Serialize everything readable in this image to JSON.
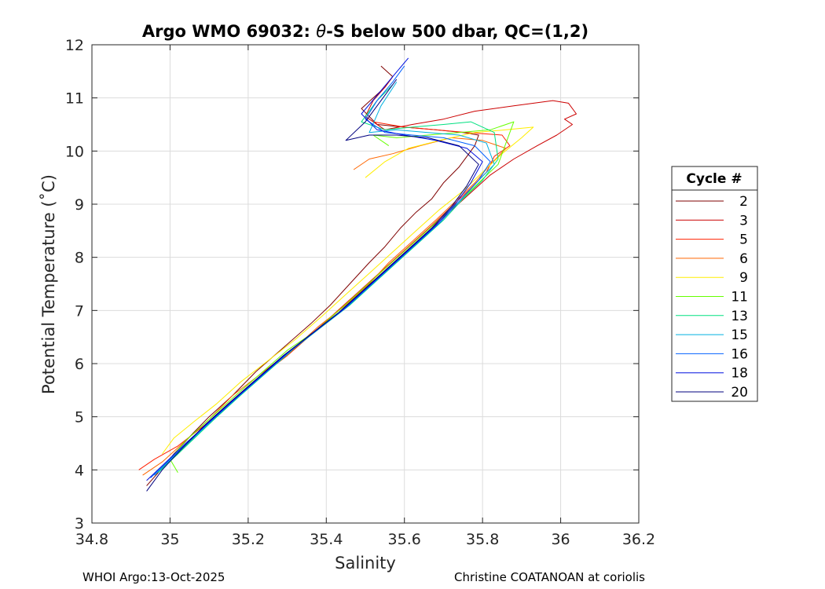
{
  "chart_data": {
    "type": "line",
    "title_prefix": "Argo WMO 69032: ",
    "title_theta": "θ",
    "title_suffix": "-S below 500 dbar,  QC=(1,2)",
    "xlabel": "Salinity",
    "ylabel": "Potential Temperature (˚C)",
    "xlim": [
      34.8,
      36.2
    ],
    "ylim": [
      3,
      12
    ],
    "xticks": [
      "34.8",
      "35",
      "35.2",
      "35.4",
      "35.6",
      "35.8",
      "36",
      "36.2"
    ],
    "yticks": [
      "3",
      "4",
      "5",
      "6",
      "7",
      "8",
      "9",
      "10",
      "11",
      "12"
    ],
    "grid": true,
    "legend_position": "outside-right",
    "legend_title": "Cycle #",
    "series": [
      {
        "name": "2",
        "color": "#7f0000",
        "x": [
          34.94,
          34.97,
          35.01,
          35.06,
          35.1,
          35.16,
          35.22,
          35.29,
          35.36,
          35.41,
          35.46,
          35.51,
          35.55,
          35.59,
          35.63,
          35.67,
          35.7,
          35.74,
          35.76,
          35.78,
          35.79,
          35.75,
          35.68,
          35.6,
          35.53,
          35.49,
          35.52,
          35.55,
          35.57,
          35.54
        ],
        "y": [
          3.7,
          3.95,
          4.3,
          4.7,
          5.0,
          5.4,
          5.85,
          6.3,
          6.75,
          7.1,
          7.5,
          7.9,
          8.2,
          8.55,
          8.85,
          9.1,
          9.4,
          9.7,
          9.9,
          10.1,
          10.3,
          10.35,
          10.4,
          10.45,
          10.5,
          10.8,
          11.0,
          11.2,
          11.4,
          11.6
        ]
      },
      {
        "name": "3",
        "color": "#cc0000",
        "x": [
          34.96,
          35.02,
          35.08,
          35.14,
          35.2,
          35.26,
          35.33,
          35.4,
          35.46,
          35.52,
          35.58,
          35.64,
          35.7,
          35.76,
          35.82,
          35.88,
          35.94,
          35.99,
          36.03,
          36.01,
          36.04,
          36.02,
          35.98,
          35.88,
          35.78,
          35.7,
          35.62,
          35.55,
          35.5,
          35.52,
          35.55,
          35.57
        ],
        "y": [
          3.9,
          4.3,
          4.75,
          5.15,
          5.55,
          5.95,
          6.35,
          6.8,
          7.2,
          7.55,
          7.95,
          8.35,
          8.75,
          9.15,
          9.55,
          9.85,
          10.1,
          10.3,
          10.5,
          10.6,
          10.7,
          10.9,
          10.95,
          10.85,
          10.75,
          10.6,
          10.5,
          10.4,
          10.65,
          10.95,
          11.2,
          11.4
        ]
      },
      {
        "name": "5",
        "color": "#ff2000",
        "x": [
          34.92,
          34.96,
          35.02,
          35.09,
          35.15,
          35.22,
          35.3,
          35.37,
          35.43,
          35.49,
          35.55,
          35.61,
          35.67,
          35.72,
          35.77,
          35.81,
          35.83,
          35.87,
          35.85,
          35.76,
          35.68,
          35.6,
          35.52
        ],
        "y": [
          4.0,
          4.2,
          4.45,
          4.85,
          5.25,
          5.7,
          6.15,
          6.6,
          7.0,
          7.4,
          7.8,
          8.2,
          8.6,
          8.95,
          9.3,
          9.6,
          9.9,
          10.1,
          10.3,
          10.35,
          10.4,
          10.45,
          10.55
        ]
      },
      {
        "name": "6",
        "color": "#ff6600",
        "x": [
          34.93,
          34.98,
          35.04,
          35.1,
          35.16,
          35.24,
          35.32,
          35.38,
          35.45,
          35.51,
          35.56,
          35.62,
          35.68,
          35.73,
          35.78,
          35.82,
          35.86,
          35.8,
          35.72,
          35.64,
          35.57,
          35.51,
          35.47
        ],
        "y": [
          3.9,
          4.15,
          4.55,
          4.95,
          5.4,
          5.85,
          6.3,
          6.7,
          7.1,
          7.5,
          7.9,
          8.3,
          8.7,
          9.05,
          9.4,
          9.75,
          10.05,
          10.2,
          10.25,
          10.1,
          9.95,
          9.85,
          9.65
        ]
      },
      {
        "name": "9",
        "color": "#ffee00",
        "x": [
          34.98,
          35.01,
          35.06,
          35.12,
          35.18,
          35.25,
          35.32,
          35.39,
          35.45,
          35.51,
          35.57,
          35.63,
          35.69,
          35.75,
          35.8,
          35.85,
          35.9,
          35.93,
          35.86,
          35.78,
          35.69,
          35.61,
          35.55,
          35.5
        ],
        "y": [
          4.3,
          4.6,
          4.9,
          5.25,
          5.65,
          6.05,
          6.45,
          6.9,
          7.3,
          7.7,
          8.1,
          8.5,
          8.9,
          9.25,
          9.6,
          9.95,
          10.25,
          10.45,
          10.4,
          10.35,
          10.2,
          10.05,
          9.8,
          9.5
        ]
      },
      {
        "name": "11",
        "color": "#66ff00",
        "x": [
          35.02,
          35.0,
          35.04,
          35.1,
          35.16,
          35.23,
          35.3,
          35.37,
          35.44,
          35.5,
          35.56,
          35.62,
          35.68,
          35.74,
          35.79,
          35.84,
          35.88,
          35.82,
          35.74,
          35.66,
          35.58,
          35.52,
          35.56
        ],
        "y": [
          3.95,
          4.2,
          4.55,
          4.95,
          5.35,
          5.8,
          6.25,
          6.6,
          7.05,
          7.45,
          7.85,
          8.25,
          8.65,
          9.05,
          9.4,
          9.75,
          10.55,
          10.4,
          10.35,
          10.3,
          10.25,
          10.3,
          10.1
        ]
      },
      {
        "name": "13",
        "color": "#00e080",
        "x": [
          34.97,
          35.02,
          35.07,
          35.12,
          35.18,
          35.25,
          35.32,
          35.39,
          35.46,
          35.52,
          35.58,
          35.64,
          35.7,
          35.75,
          35.8,
          35.84,
          35.83,
          35.77,
          35.7,
          35.62,
          35.55,
          35.49,
          35.53,
          35.57
        ],
        "y": [
          3.95,
          4.3,
          4.65,
          5.0,
          5.4,
          5.85,
          6.3,
          6.7,
          7.1,
          7.5,
          7.9,
          8.3,
          8.7,
          9.1,
          9.45,
          9.85,
          10.35,
          10.55,
          10.5,
          10.45,
          10.4,
          10.55,
          10.95,
          11.25
        ]
      },
      {
        "name": "15",
        "color": "#00b0e0",
        "x": [
          34.96,
          35.01,
          35.06,
          35.11,
          35.17,
          35.24,
          35.31,
          35.38,
          35.45,
          35.51,
          35.57,
          35.63,
          35.69,
          35.74,
          35.79,
          35.83,
          35.81,
          35.74,
          35.66,
          35.58,
          35.51,
          35.54,
          35.58
        ],
        "y": [
          3.9,
          4.25,
          4.6,
          4.95,
          5.35,
          5.8,
          6.25,
          6.65,
          7.05,
          7.45,
          7.85,
          8.25,
          8.65,
          9.05,
          9.45,
          9.75,
          10.15,
          10.3,
          10.35,
          10.4,
          10.35,
          10.85,
          11.3
        ]
      },
      {
        "name": "16",
        "color": "#0060ff",
        "x": [
          34.95,
          35.0,
          35.05,
          35.11,
          35.17,
          35.24,
          35.31,
          35.38,
          35.45,
          35.51,
          35.57,
          35.63,
          35.69,
          35.74,
          35.79,
          35.82,
          35.78,
          35.7,
          35.62,
          35.55,
          35.5,
          35.53,
          35.57,
          35.6
        ],
        "y": [
          3.85,
          4.2,
          4.55,
          4.95,
          5.35,
          5.8,
          6.25,
          6.65,
          7.05,
          7.45,
          7.85,
          8.25,
          8.65,
          9.05,
          9.45,
          9.8,
          10.1,
          10.25,
          10.3,
          10.35,
          10.6,
          10.95,
          11.3,
          11.6
        ]
      },
      {
        "name": "18",
        "color": "#0010e0",
        "x": [
          34.94,
          34.99,
          35.04,
          35.1,
          35.16,
          35.23,
          35.3,
          35.37,
          35.44,
          35.5,
          35.56,
          35.62,
          35.68,
          35.73,
          35.77,
          35.8,
          35.76,
          35.68,
          35.6,
          35.53,
          35.49,
          35.53,
          35.57,
          35.61
        ],
        "y": [
          3.8,
          4.15,
          4.5,
          4.9,
          5.3,
          5.75,
          6.2,
          6.6,
          7.0,
          7.4,
          7.8,
          8.2,
          8.6,
          9.0,
          9.4,
          9.8,
          10.05,
          10.2,
          10.3,
          10.4,
          10.7,
          11.05,
          11.4,
          11.75
        ]
      },
      {
        "name": "20",
        "color": "#00007f",
        "x": [
          34.94,
          34.98,
          35.03,
          35.09,
          35.15,
          35.22,
          35.29,
          35.36,
          35.43,
          35.49,
          35.55,
          35.61,
          35.67,
          35.72,
          35.76,
          35.79,
          35.74,
          35.66,
          35.58,
          35.51,
          35.45,
          35.5,
          35.54,
          35.58
        ],
        "y": [
          3.6,
          4.0,
          4.4,
          4.85,
          5.25,
          5.7,
          6.15,
          6.55,
          6.95,
          7.35,
          7.75,
          8.15,
          8.55,
          8.95,
          9.35,
          9.75,
          10.1,
          10.25,
          10.3,
          10.3,
          10.2,
          10.55,
          10.95,
          11.35
        ]
      }
    ]
  },
  "footer": {
    "left": "WHOI Argo:13-Oct-2025",
    "right": "Christine COATANOAN at coriolis"
  }
}
